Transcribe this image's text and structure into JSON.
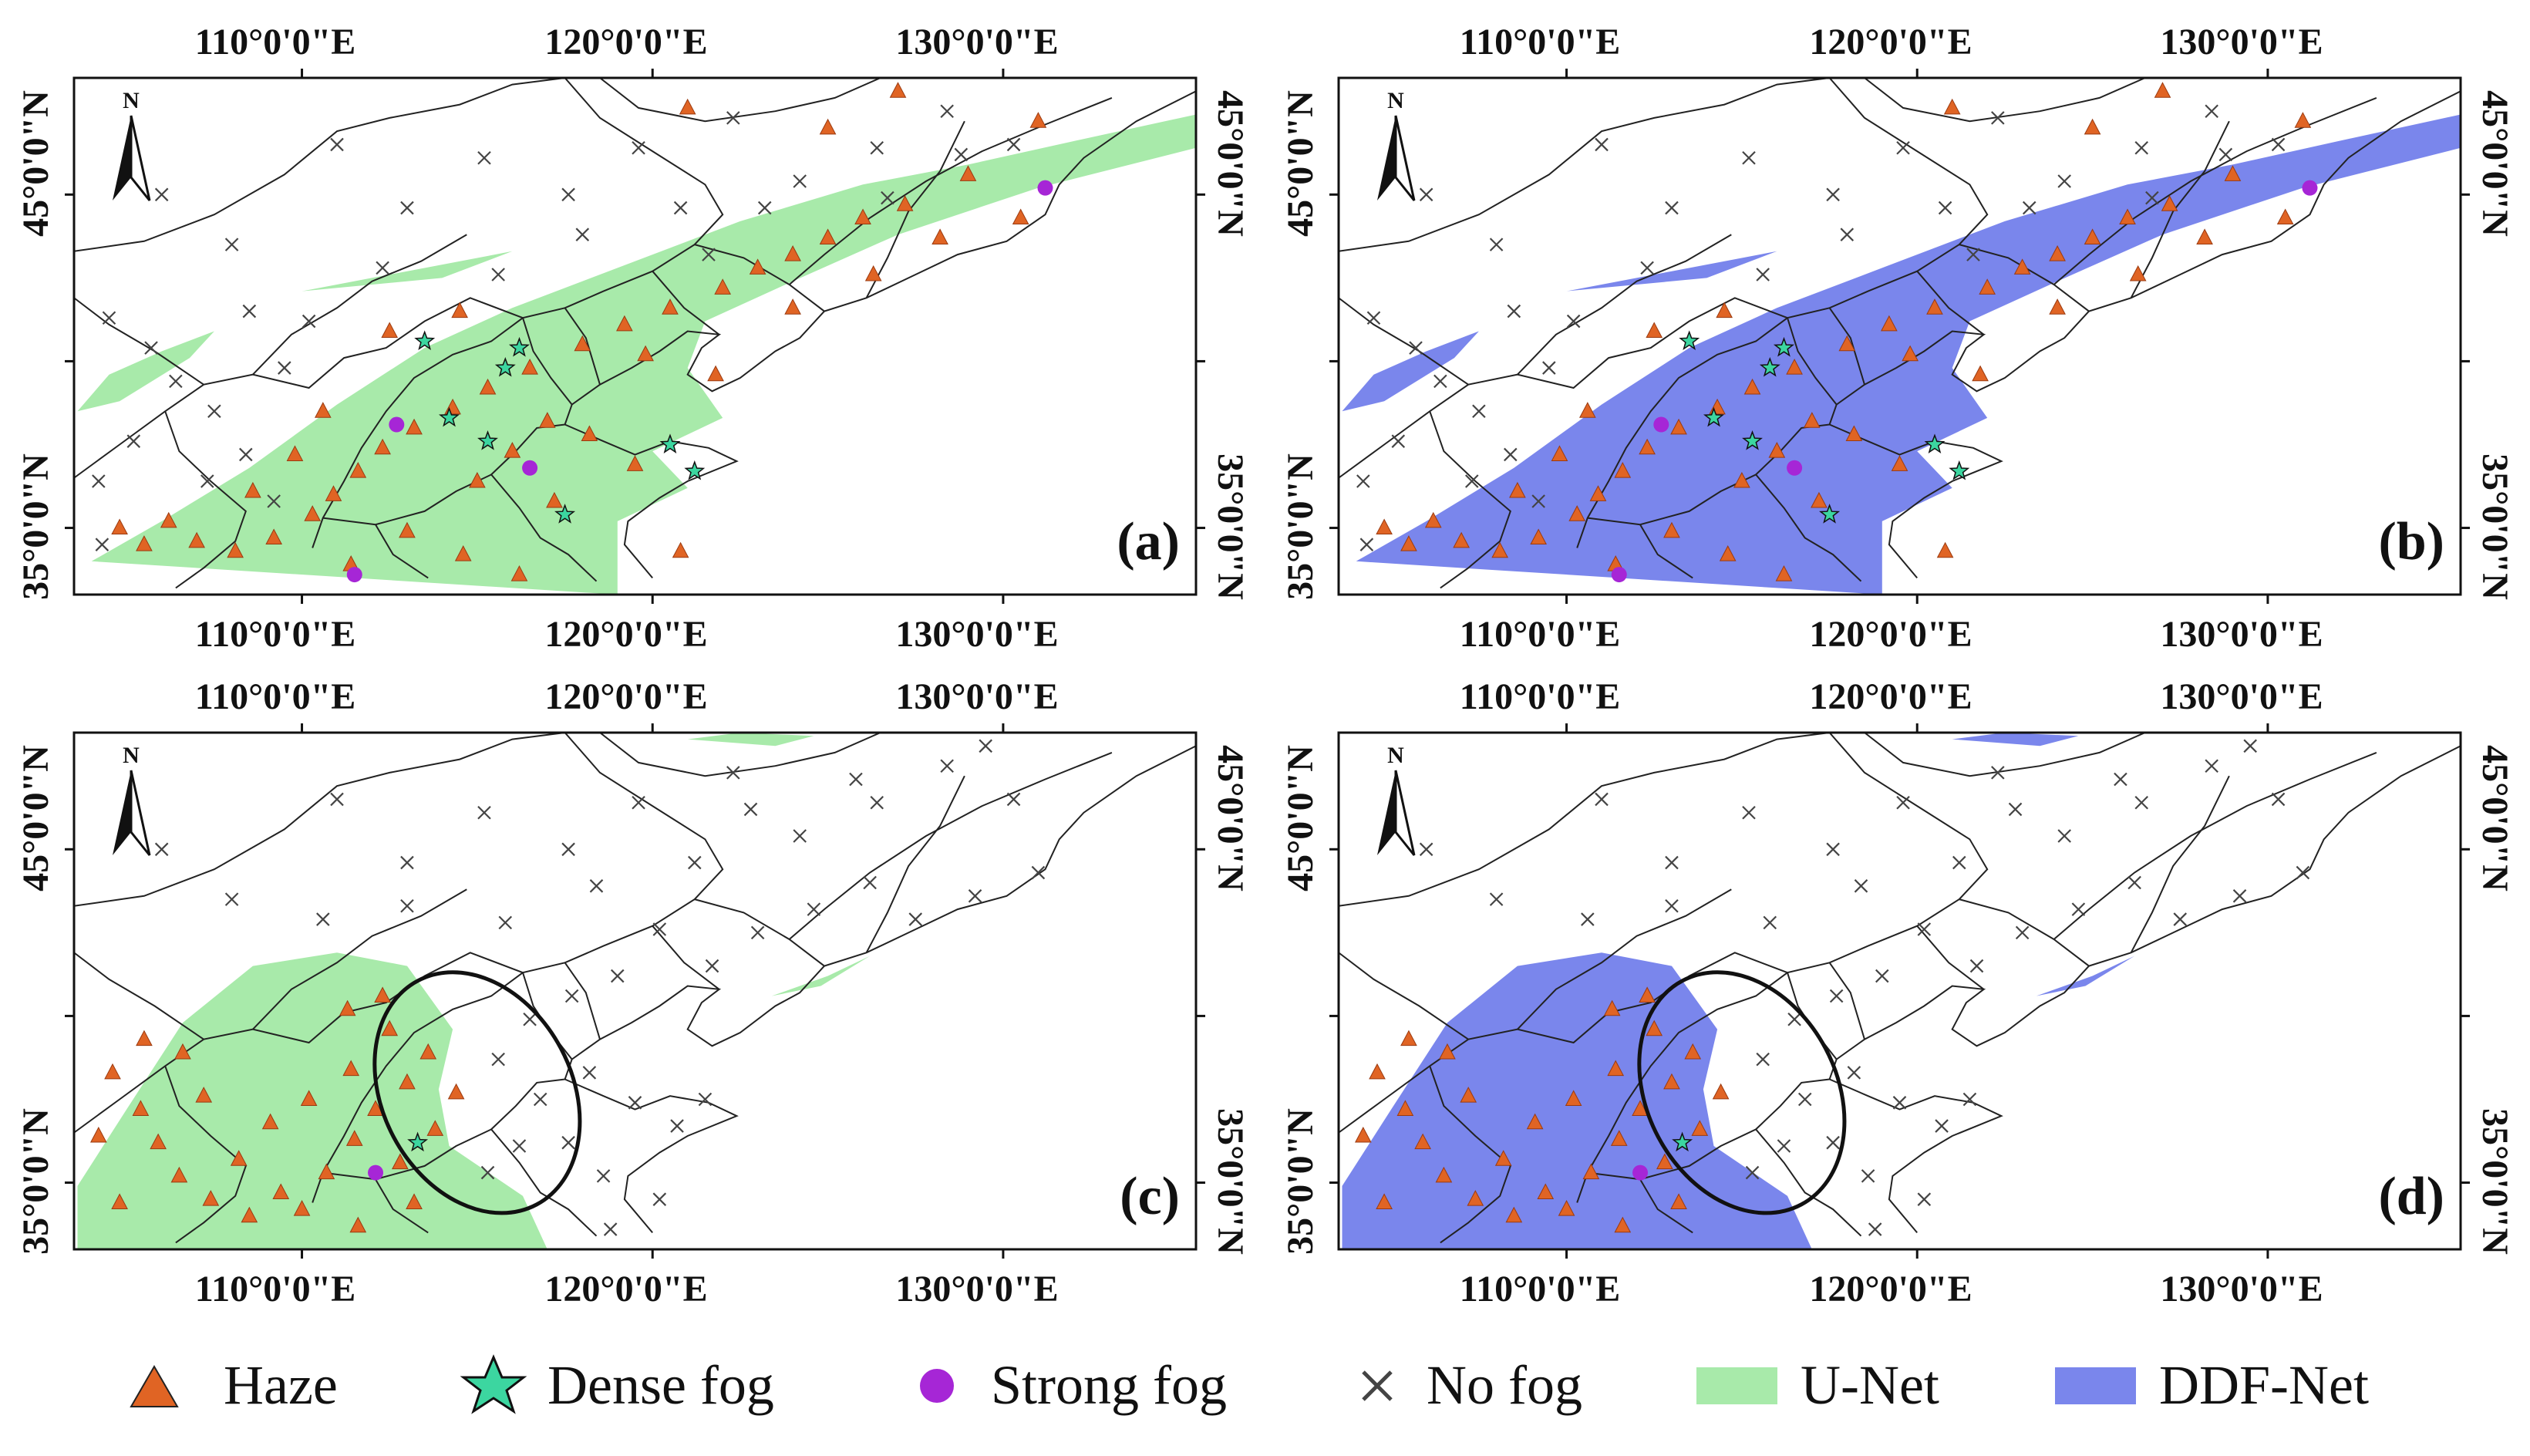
{
  "figure": {
    "coordinates": {
      "lon_ticks": [
        110,
        120,
        130
      ],
      "lat_ticks": [
        35,
        45
      ],
      "extent": {
        "lon_min": 103.5,
        "lon_max": 135.5,
        "lat_min": 33,
        "lat_max": 48.5
      },
      "lon_labels": [
        "110°0'0\"E",
        "120°0'0\"E",
        "130°0'0\"E"
      ],
      "lat_labels": [
        "35°0'0\"N",
        "45°0'0\"N"
      ]
    },
    "north_arrow_label": "N",
    "panels": [
      {
        "id": "a",
        "label": "(a)",
        "product": "U-Net",
        "fill": "#a8eaaa",
        "case": "case1"
      },
      {
        "id": "b",
        "label": "(b)",
        "product": "DDF-Net",
        "fill": "#7a86ec",
        "case": "case1"
      },
      {
        "id": "c",
        "label": "(c)",
        "product": "U-Net",
        "fill": "#a8eaaa",
        "case": "case2"
      },
      {
        "id": "d",
        "label": "(d)",
        "product": "DDF-Net",
        "fill": "#7a86ec",
        "case": "case2"
      }
    ],
    "cases": {
      "case1": {
        "regions": [
          [
            [
              104,
              34
            ],
            [
              106,
              35.2
            ],
            [
              108.5,
              36.8
            ],
            [
              111,
              38.7
            ],
            [
              113.5,
              40.4
            ],
            [
              116,
              41.6
            ],
            [
              119,
              42.8
            ],
            [
              122.5,
              44.2
            ],
            [
              126,
              45.3
            ],
            [
              129,
              45.9
            ],
            [
              132,
              46.6
            ],
            [
              135.5,
              47.4
            ],
            [
              135.5,
              46.4
            ],
            [
              131,
              45.2
            ],
            [
              127,
              43.8
            ],
            [
              124,
              42.4
            ],
            [
              121.5,
              41.2
            ],
            [
              121,
              39.8
            ],
            [
              122,
              38.3
            ],
            [
              120,
              37.3
            ],
            [
              121,
              36.2
            ],
            [
              119,
              35.2
            ],
            [
              119,
              33
            ]
          ],
          [
            [
              103.6,
              38.5
            ],
            [
              104.5,
              39.6
            ],
            [
              106,
              40.3
            ],
            [
              107.5,
              40.9
            ],
            [
              106.8,
              40.1
            ],
            [
              104.8,
              38.8
            ]
          ],
          [
            [
              110,
              42.1
            ],
            [
              113,
              42.7
            ],
            [
              116,
              43.3
            ],
            [
              114,
              42.5
            ]
          ]
        ],
        "haze": [
          [
            121,
            47.6
          ],
          [
            125,
            47
          ],
          [
            127,
            48.1
          ],
          [
            131,
            47.2
          ],
          [
            129,
            45.6
          ],
          [
            127.2,
            44.7
          ],
          [
            126,
            44.3
          ],
          [
            125,
            43.7
          ],
          [
            124,
            43.2
          ],
          [
            123,
            42.8
          ],
          [
            122,
            42.2
          ],
          [
            120.5,
            41.6
          ],
          [
            119.2,
            41.1
          ],
          [
            118,
            40.5
          ],
          [
            116.5,
            39.8
          ],
          [
            115.3,
            39.2
          ],
          [
            114.3,
            38.6
          ],
          [
            113.2,
            38
          ],
          [
            112.3,
            37.4
          ],
          [
            111.6,
            36.7
          ],
          [
            110.9,
            36
          ],
          [
            110.3,
            35.4
          ],
          [
            109.2,
            34.7
          ],
          [
            108.1,
            34.3
          ],
          [
            107,
            34.6
          ],
          [
            106.2,
            35.2
          ],
          [
            105.5,
            34.5
          ],
          [
            104.8,
            35
          ],
          [
            117,
            38.2
          ],
          [
            116,
            37.3
          ],
          [
            115,
            36.4
          ],
          [
            118.2,
            37.8
          ],
          [
            119.5,
            36.9
          ],
          [
            117.2,
            35.8
          ],
          [
            113,
            34.9
          ],
          [
            114.6,
            34.2
          ],
          [
            111.4,
            33.9
          ],
          [
            112.5,
            40.9
          ],
          [
            124,
            41.6
          ],
          [
            126.3,
            42.6
          ],
          [
            128.2,
            43.7
          ],
          [
            130.5,
            44.3
          ],
          [
            121.8,
            39.6
          ],
          [
            119.8,
            40.2
          ],
          [
            114.5,
            41.5
          ],
          [
            110.6,
            38.5
          ],
          [
            109.8,
            37.2
          ],
          [
            108.6,
            36.1
          ],
          [
            120.8,
            34.3
          ],
          [
            116.2,
            33.6
          ]
        ],
        "dense": [
          [
            113.5,
            40.6
          ],
          [
            116.2,
            40.4
          ],
          [
            115.8,
            39.8
          ],
          [
            114.2,
            38.3
          ],
          [
            115.3,
            37.6
          ],
          [
            117.5,
            35.4
          ],
          [
            120.5,
            37.5
          ],
          [
            121.2,
            36.7
          ]
        ],
        "strong": [
          [
            131.2,
            45.2
          ],
          [
            112.7,
            38.1
          ],
          [
            116.5,
            36.8
          ],
          [
            111.5,
            33.6
          ]
        ],
        "nofog": [
          [
            106,
            45
          ],
          [
            108,
            43.5
          ],
          [
            111,
            46.5
          ],
          [
            113,
            44.6
          ],
          [
            115.2,
            46.1
          ],
          [
            117.6,
            45
          ],
          [
            119.6,
            46.4
          ],
          [
            122.3,
            47.3
          ],
          [
            124.2,
            45.4
          ],
          [
            126.4,
            46.4
          ],
          [
            128.4,
            47.5
          ],
          [
            130.3,
            46.5
          ],
          [
            104.5,
            41.3
          ],
          [
            105.7,
            40.4
          ],
          [
            106.4,
            39.4
          ],
          [
            107.5,
            38.5
          ],
          [
            108.4,
            37.2
          ],
          [
            105.2,
            37.6
          ],
          [
            104.2,
            36.4
          ],
          [
            109.5,
            39.8
          ],
          [
            110.2,
            41.2
          ],
          [
            118,
            43.8
          ],
          [
            120.8,
            44.6
          ],
          [
            121.6,
            43.2
          ],
          [
            123.2,
            44.6
          ],
          [
            108.5,
            41.5
          ],
          [
            112.3,
            42.8
          ],
          [
            115.6,
            42.6
          ],
          [
            126.7,
            44.9
          ],
          [
            128.8,
            46.2
          ],
          [
            104.3,
            34.5
          ],
          [
            107.3,
            36.4
          ],
          [
            109.2,
            35.8
          ]
        ],
        "ellipse": null
      },
      "case2": {
        "regions": [
          [
            [
              103.6,
              34.9
            ],
            [
              105,
              37.2
            ],
            [
              106.6,
              39.8
            ],
            [
              108.6,
              41.5
            ],
            [
              111,
              41.9
            ],
            [
              113,
              41.5
            ],
            [
              114.3,
              39.6
            ],
            [
              113.9,
              37.8
            ],
            [
              114.2,
              36.1
            ],
            [
              116.3,
              34.6
            ],
            [
              117,
              33
            ],
            [
              103.6,
              33
            ]
          ],
          [
            [
              123.4,
              40.6
            ],
            [
              125,
              41.2
            ],
            [
              126.2,
              41.8
            ],
            [
              124.8,
              40.9
            ]
          ],
          [
            [
              121,
              48.3
            ],
            [
              123.5,
              48.1
            ],
            [
              124.6,
              48.4
            ],
            [
              122.5,
              48.5
            ]
          ]
        ],
        "haze": [
          [
            104.6,
            38.3
          ],
          [
            105.4,
            37.2
          ],
          [
            104.2,
            36.4
          ],
          [
            105.9,
            36.2
          ],
          [
            106.5,
            35.2
          ],
          [
            107.4,
            34.5
          ],
          [
            108.5,
            34
          ],
          [
            109.4,
            34.7
          ],
          [
            110.7,
            35.3
          ],
          [
            111.5,
            36.3
          ],
          [
            112.1,
            37.2
          ],
          [
            113,
            38
          ],
          [
            113.6,
            38.9
          ],
          [
            112.5,
            39.6
          ],
          [
            111.4,
            38.4
          ],
          [
            110.2,
            37.5
          ],
          [
            109.1,
            36.8
          ],
          [
            108.2,
            35.7
          ],
          [
            107.2,
            37.6
          ],
          [
            106.6,
            38.9
          ],
          [
            105.5,
            39.3
          ],
          [
            104.8,
            34.4
          ],
          [
            110,
            34.2
          ],
          [
            111.6,
            33.7
          ],
          [
            113.2,
            34.4
          ],
          [
            112.8,
            35.6
          ],
          [
            113.8,
            36.6
          ],
          [
            114.4,
            37.7
          ],
          [
            112.3,
            40.6
          ],
          [
            111.3,
            40.2
          ]
        ],
        "dense": [
          [
            113.3,
            36.2
          ]
        ],
        "strong": [
          [
            112.1,
            35.3
          ]
        ],
        "nofog": [
          [
            106,
            45
          ],
          [
            108,
            43.5
          ],
          [
            111,
            46.5
          ],
          [
            113,
            44.6
          ],
          [
            115.2,
            46.1
          ],
          [
            117.6,
            45
          ],
          [
            119.6,
            46.4
          ],
          [
            122.3,
            47.3
          ],
          [
            124.2,
            45.4
          ],
          [
            126.4,
            46.4
          ],
          [
            128.4,
            47.5
          ],
          [
            130.3,
            46.5
          ],
          [
            131,
            44.3
          ],
          [
            129.2,
            43.6
          ],
          [
            127.5,
            42.9
          ],
          [
            126.2,
            44
          ],
          [
            124.6,
            43.2
          ],
          [
            123,
            42.5
          ],
          [
            121.7,
            41.5
          ],
          [
            120.2,
            42.6
          ],
          [
            119,
            41.2
          ],
          [
            117.7,
            40.6
          ],
          [
            116.5,
            39.9
          ],
          [
            115.6,
            38.7
          ],
          [
            116.8,
            37.5
          ],
          [
            118.2,
            38.3
          ],
          [
            119.5,
            37.4
          ],
          [
            120.7,
            36.7
          ],
          [
            121.5,
            37.5
          ],
          [
            117.6,
            36.2
          ],
          [
            118.6,
            35.2
          ],
          [
            116.2,
            36.1
          ],
          [
            115.3,
            35.3
          ],
          [
            120.2,
            34.5
          ],
          [
            118.8,
            33.6
          ],
          [
            110.6,
            42.9
          ],
          [
            113,
            43.3
          ],
          [
            115.8,
            42.8
          ],
          [
            118.4,
            43.9
          ],
          [
            121.2,
            44.6
          ],
          [
            122.8,
            46.2
          ],
          [
            125.8,
            47.1
          ],
          [
            129.5,
            48.1
          ]
        ],
        "ellipse": {
          "lon": 115,
          "lat": 37.7,
          "rx_deg": 2.7,
          "ry_deg": 3.8,
          "angle": -28
        }
      }
    },
    "legend": [
      {
        "type": "haze",
        "label": "Haze",
        "color": "#e06424"
      },
      {
        "type": "dense",
        "label": "Dense fog",
        "color": "#3cd6a0"
      },
      {
        "type": "strong",
        "label": "Strong fog",
        "color": "#a626d6"
      },
      {
        "type": "nofog",
        "label": "No fog",
        "color": "#444444"
      },
      {
        "type": "unet",
        "label": "U-Net",
        "color": "#a8eaaa"
      },
      {
        "type": "ddf",
        "label": "DDF-Net",
        "color": "#7a86ec"
      }
    ]
  }
}
